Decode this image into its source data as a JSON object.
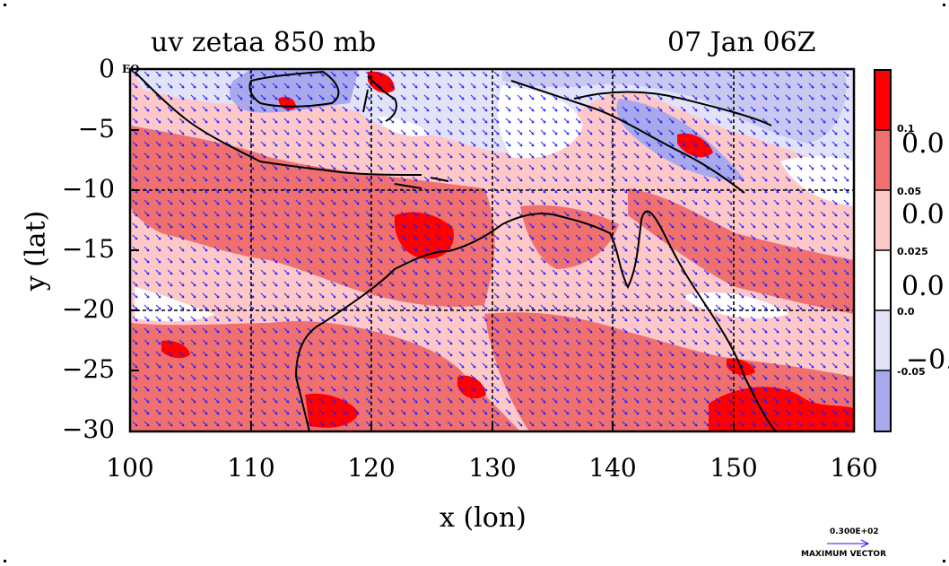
{
  "title_left": "uv zetaa 850 mb",
  "title_right": "07 Jan 06Z",
  "x_axis": {
    "label": "x (lon)",
    "ticks": [
      "100",
      "110",
      "120",
      "130",
      "140",
      "150",
      "160"
    ],
    "values": [
      100,
      110,
      120,
      130,
      140,
      150,
      160
    ],
    "range": [
      100,
      160
    ]
  },
  "y_axis": {
    "label": "y (lat)",
    "ticks": [
      "0",
      "−5",
      "−10",
      "−15",
      "−20",
      "−25",
      "−30"
    ],
    "values": [
      0,
      -5,
      -10,
      -15,
      -20,
      -25,
      -30
    ],
    "range": [
      -30,
      0
    ]
  },
  "eq_label": "EQ",
  "colorbar": {
    "labels": [
      "0.1",
      "0.05",
      "0.025",
      "0.0",
      "-0.05"
    ],
    "big_labels": [
      "0.0",
      "0.0",
      "0.0",
      "−0."
    ],
    "colors": [
      "#ff0000",
      "#f07070",
      "#ffc8c8",
      "#ffffff",
      "#e2e2f8",
      "#a8a8ec"
    ]
  },
  "vector_key": {
    "value": "0.300E+02",
    "label": "MAXIMUM VECTOR"
  },
  "colors": {
    "strong_pos": "#ff0000",
    "mid_pos": "#f07070",
    "weak_pos": "#ffc8c8",
    "neutral": "#ffffff",
    "weak_neg": "#e2e2f8",
    "neg": "#a8a8ec",
    "vector": "#1a1aff",
    "grid": "#000000"
  }
}
